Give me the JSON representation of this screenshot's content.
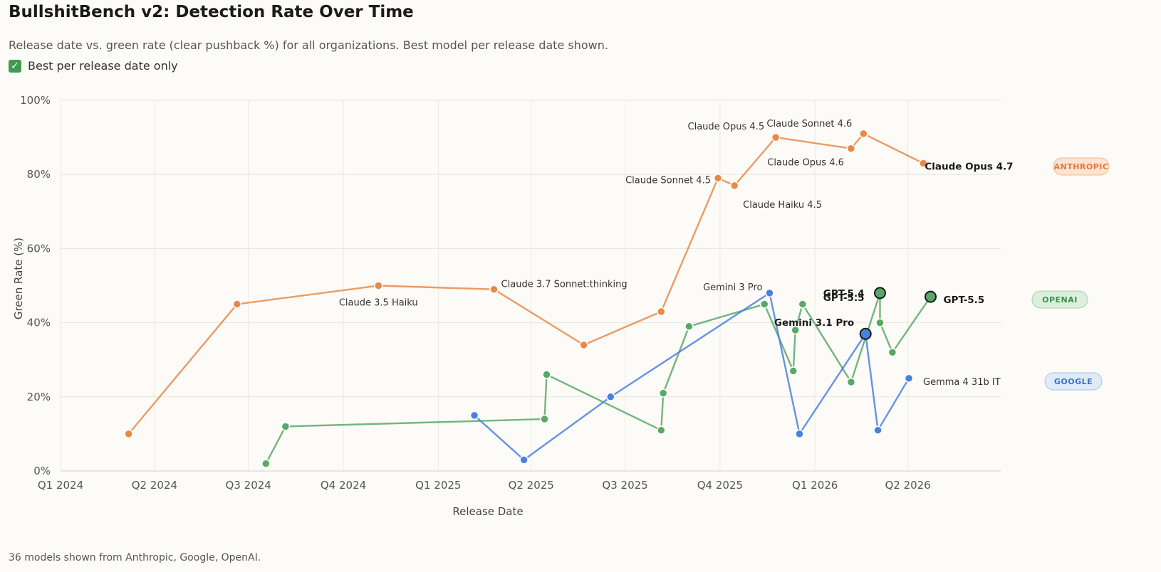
{
  "header": {
    "title": "BullshitBench v2: Detection Rate Over Time",
    "subtitle": "Release date vs. green rate (clear pushback %) for all organizations. Best model per release date shown.",
    "filter_label": "Best per release date only",
    "filter_checked": true
  },
  "footer": {
    "text": "36 models shown from Anthropic, Google, OpenAI."
  },
  "chart_data": {
    "type": "line",
    "title": "BullshitBench v2: Detection Rate Over Time",
    "xlabel": "Release Date",
    "ylabel": "Green Rate (%)",
    "x_ticks": [
      "Q1 2024",
      "Q2 2024",
      "Q3 2024",
      "Q4 2024",
      "Q1 2025",
      "Q2 2025",
      "Q3 2025",
      "Q4 2025",
      "Q1 2026",
      "Q2 2026"
    ],
    "y_ticks": [
      "0%",
      "20%",
      "40%",
      "60%",
      "80%",
      "100%"
    ],
    "ylim": [
      0,
      100
    ],
    "xlim": [
      "2024-01-01",
      "2026-06-30"
    ],
    "grid": true,
    "series": [
      {
        "name": "ANTHROPIC",
        "color": "#e8894a",
        "points": [
          {
            "date": "2024-03-07",
            "value": 10,
            "label": ""
          },
          {
            "date": "2024-06-20",
            "value": 45,
            "label": ""
          },
          {
            "date": "2024-11-04",
            "value": 50,
            "label": "Claude 3.5 Haiku"
          },
          {
            "date": "2025-02-24",
            "value": 49,
            "label": "Claude 3.7 Sonnet:thinking"
          },
          {
            "date": "2025-05-22",
            "value": 34,
            "label": ""
          },
          {
            "date": "2025-08-05",
            "value": 43,
            "label": ""
          },
          {
            "date": "2025-09-29",
            "value": 79,
            "label": "Claude Sonnet 4.5"
          },
          {
            "date": "2025-10-15",
            "value": 77,
            "label": "Claude Haiku 4.5"
          },
          {
            "date": "2025-11-24",
            "value": 90,
            "label": "Claude Opus 4.5"
          },
          {
            "date": "2026-02-05",
            "value": 87,
            "label": "Claude Opus 4.6"
          },
          {
            "date": "2026-02-17",
            "value": 91,
            "label": "Claude Sonnet 4.6"
          },
          {
            "date": "2026-04-16",
            "value": 83,
            "label": "Claude Opus 4.7",
            "highlight": true
          }
        ]
      },
      {
        "name": "OPENAI",
        "color": "#5aa866",
        "points": [
          {
            "date": "2024-07-18",
            "value": 2,
            "label": ""
          },
          {
            "date": "2024-08-06",
            "value": 12,
            "label": ""
          },
          {
            "date": "2025-04-14",
            "value": 14,
            "label": ""
          },
          {
            "date": "2025-04-16",
            "value": 26,
            "label": ""
          },
          {
            "date": "2025-08-05",
            "value": 11,
            "label": ""
          },
          {
            "date": "2025-08-07",
            "value": 21,
            "label": ""
          },
          {
            "date": "2025-09-01",
            "value": 39,
            "label": ""
          },
          {
            "date": "2025-11-13",
            "value": 45,
            "label": ""
          },
          {
            "date": "2025-12-11",
            "value": 27,
            "label": ""
          },
          {
            "date": "2025-12-13",
            "value": 38,
            "label": ""
          },
          {
            "date": "2025-12-20",
            "value": 45,
            "label": ""
          },
          {
            "date": "2026-02-05",
            "value": 24,
            "label": ""
          },
          {
            "date": "2026-03-05",
            "value": 48,
            "label": "GPT-5.4",
            "highlight": true
          },
          {
            "date": "2026-03-05",
            "value": 40,
            "label": ""
          },
          {
            "date": "2026-03-17",
            "value": 32,
            "label": ""
          },
          {
            "date": "2026-04-23",
            "value": 47,
            "label": "GPT-5.5",
            "highlight": true
          }
        ]
      },
      {
        "name": "GOOGLE",
        "color": "#4a80e0",
        "points": [
          {
            "date": "2025-02-05",
            "value": 15,
            "label": ""
          },
          {
            "date": "2025-03-25",
            "value": 3,
            "label": ""
          },
          {
            "date": "2025-06-17",
            "value": 20,
            "label": ""
          },
          {
            "date": "2025-11-18",
            "value": 48,
            "label": "Gemini 3 Pro"
          },
          {
            "date": "2025-12-17",
            "value": 10,
            "label": ""
          },
          {
            "date": "2026-02-19",
            "value": 37,
            "label": "Gemini 3.1 Pro",
            "highlight": true
          },
          {
            "date": "2026-03-03",
            "value": 11,
            "label": ""
          },
          {
            "date": "2026-04-02",
            "value": 25,
            "label": "Gemma 4 31b IT"
          }
        ]
      }
    ],
    "extra_labels": [
      {
        "text": "GPT-5.5",
        "date": "2026-03-05",
        "value": 47,
        "series": "OPENAI"
      }
    ]
  }
}
